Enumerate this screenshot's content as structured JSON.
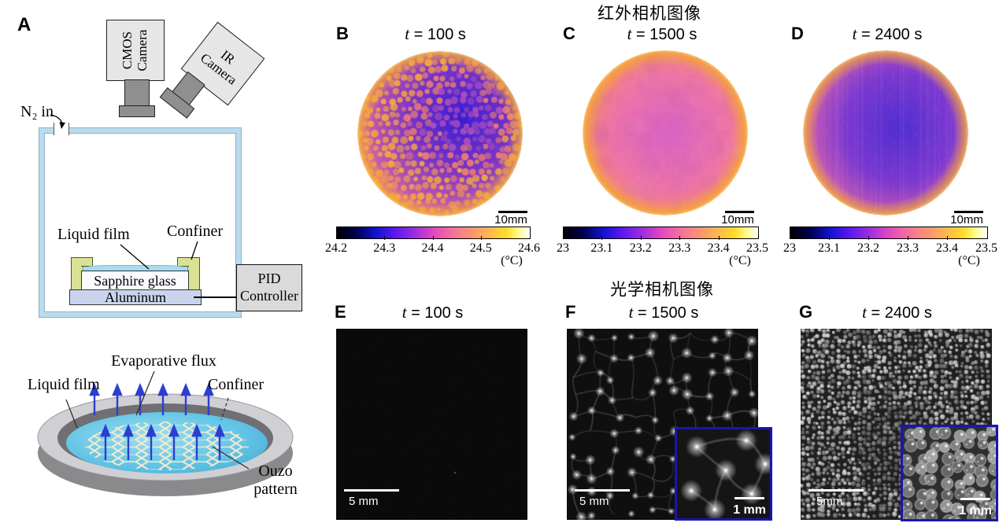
{
  "panel_a": {
    "label": "A",
    "cmos_camera": "CMOS Camera",
    "ir_camera": "IR Camera",
    "n2_in": "N₂ in",
    "liquid_film": "Liquid film",
    "confiner": "Confiner",
    "sapphire_glass": "Sapphire glass",
    "aluminum": "Aluminum",
    "pid_controller": "PID Controller",
    "schematic": {
      "evaporative_flux": "Evaporative flux",
      "liquid_film": "Liquid film",
      "confiner": "Confiner",
      "ouzo_pattern": "Ouzo pattern"
    }
  },
  "ir_section": {
    "title": "红外相机图像",
    "panels": [
      {
        "label": "B",
        "time_var": "t",
        "time_rest": " = 100 s",
        "scalebar": "10mm",
        "ticks": [
          "24.2",
          "24.3",
          "24.4",
          "24.5",
          "24.6"
        ],
        "unit": "(°C)"
      },
      {
        "label": "C",
        "time_var": "t",
        "time_rest": " = 1500 s",
        "scalebar": "10mm",
        "ticks": [
          "23",
          "23.1",
          "23.2",
          "23.3",
          "23.4",
          "23.5"
        ],
        "unit": "(°C)"
      },
      {
        "label": "D",
        "time_var": "t",
        "time_rest": " = 2400 s",
        "scalebar": "10mm",
        "ticks": [
          "23",
          "23.1",
          "23.2",
          "23.3",
          "23.4",
          "23.5"
        ],
        "unit": "(°C)"
      }
    ]
  },
  "optical_section": {
    "title": "光学相机图像",
    "panels": [
      {
        "label": "E",
        "time_var": "t",
        "time_rest": " = 100 s",
        "scalebar": "5 mm"
      },
      {
        "label": "F",
        "time_var": "t",
        "time_rest": " = 1500 s",
        "scalebar": "5 mm",
        "inset_scalebar": "1 mm"
      },
      {
        "label": "G",
        "time_var": "t",
        "time_rest": " = 2400 s",
        "scalebar": "5mm",
        "inset_scalebar": "1 mm"
      }
    ]
  },
  "colors": {
    "thermal_colormap": [
      "#000000",
      "#00004d",
      "#1212cf",
      "#5a18f0",
      "#9c2ce0",
      "#e048c0",
      "#f4709f",
      "#fb9470",
      "#ffb750",
      "#ffdc28",
      "#ffffff"
    ],
    "inset_border": "#1b16ad",
    "confiner_fill": "#d9e192",
    "chamber_wall": "#badbee",
    "aluminum_fill": "#c9d4ec",
    "liquid_film_fill": "#a8dcf2",
    "evaporative_arrow": "#2b3fd0"
  }
}
